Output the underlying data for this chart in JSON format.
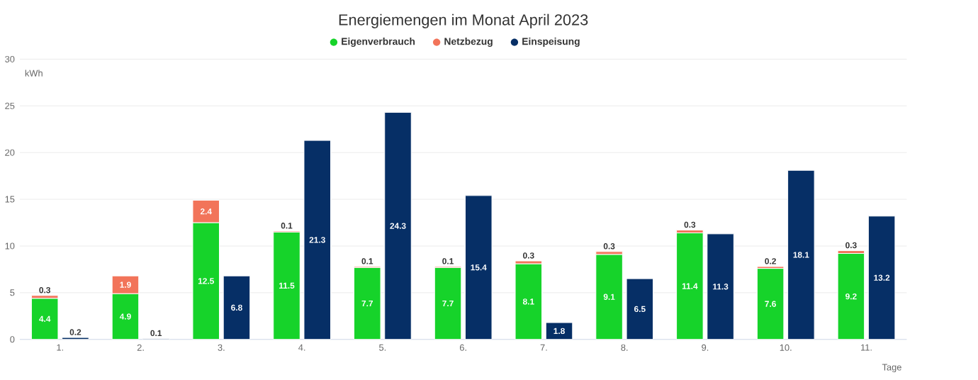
{
  "chart_data": {
    "type": "bar",
    "title": "Energiemengen im Monat April 2023",
    "xlabel": "Tage",
    "ylabel": "kWh",
    "categories": [
      "1.",
      "2.",
      "3.",
      "4.",
      "5.",
      "6.",
      "7.",
      "8.",
      "9.",
      "10.",
      "11."
    ],
    "series": [
      {
        "name": "Eigenverbrauch",
        "color": "#16d32a",
        "values": [
          4.4,
          4.9,
          12.5,
          11.5,
          7.7,
          7.7,
          8.1,
          9.1,
          11.4,
          7.6,
          9.2
        ]
      },
      {
        "name": "Netzbezug",
        "color": "#f2745a",
        "base": [
          4.4,
          4.9,
          12.5,
          11.5,
          7.7,
          7.7,
          8.1,
          9.1,
          11.4,
          7.6,
          9.2
        ],
        "values": [
          0.3,
          1.9,
          2.4,
          0.1,
          0.1,
          0.1,
          0.3,
          0.3,
          0.3,
          0.2,
          0.3
        ]
      },
      {
        "name": "Einspeisung",
        "color": "#062f66",
        "values": [
          0.2,
          0.1,
          6.8,
          21.3,
          24.3,
          15.4,
          1.8,
          6.5,
          11.3,
          18.1,
          13.2
        ]
      }
    ],
    "ylim": [
      0,
      30
    ],
    "yticks": [
      0,
      5,
      10,
      15,
      20,
      25,
      30
    ],
    "grid": "y",
    "legend": "top",
    "data_labels": true
  }
}
